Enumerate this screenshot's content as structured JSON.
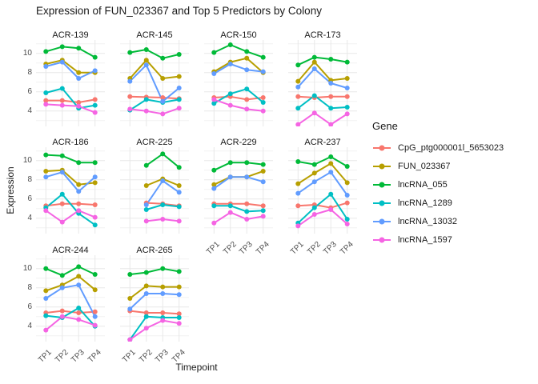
{
  "title": "Expression of FUN_023367 and Top 5 Predictors by Colony",
  "axis": {
    "x_title": "Timepoint",
    "y_title": "Expression",
    "x_tick_labels": [
      "TP1",
      "TP2",
      "TP3",
      "TP4"
    ],
    "y_tick_labels": [
      "4",
      "6",
      "8",
      "10"
    ]
  },
  "legend": {
    "title": "Gene",
    "entries": [
      {
        "label": "CpG_ptg000001l_5653023",
        "color": "#F8766D"
      },
      {
        "label": "FUN_023367",
        "color": "#B79F00"
      },
      {
        "label": "lncRNA_055",
        "color": "#00BA38"
      },
      {
        "label": "lncRNA_1289",
        "color": "#00BFC4"
      },
      {
        "label": "lncRNA_13032",
        "color": "#619CFF"
      },
      {
        "label": "lncRNA_1597",
        "color": "#F564E3"
      }
    ]
  },
  "chart_data": {
    "type": "line",
    "x": [
      "TP1",
      "TP2",
      "TP3",
      "TP4"
    ],
    "xlabel": "Timepoint",
    "ylabel": "Expression",
    "y_domain": [
      2.4,
      11.4
    ],
    "y_major_ticks": [
      4,
      6,
      8,
      10
    ],
    "y_minor_ticks": [
      3,
      5,
      7,
      9,
      11
    ],
    "grid": "on",
    "legend_position": "right",
    "series_names": [
      "CpG_ptg000001l_5653023",
      "FUN_023367",
      "lncRNA_055",
      "lncRNA_1289",
      "lncRNA_13032",
      "lncRNA_1597"
    ],
    "series_colors": [
      "#F8766D",
      "#B79F00",
      "#00BA38",
      "#00BFC4",
      "#619CFF",
      "#F564E3"
    ],
    "facets": [
      {
        "colony": "ACR-139",
        "series": [
          [
            5.1,
            5.1,
            4.9,
            5.2
          ],
          [
            8.9,
            9.3,
            8.0,
            8.0
          ],
          [
            10.2,
            10.7,
            10.55,
            9.6
          ],
          [
            5.9,
            6.35,
            4.3,
            4.6
          ],
          [
            8.65,
            9.1,
            7.4,
            8.2
          ],
          [
            4.7,
            4.6,
            4.5,
            3.85
          ]
        ]
      },
      {
        "colony": "ACR-145",
        "series": [
          [
            5.5,
            5.45,
            5.4,
            5.3
          ],
          [
            7.4,
            9.3,
            7.4,
            7.6
          ],
          [
            10.1,
            10.4,
            9.5,
            9.9
          ],
          [
            4.1,
            5.2,
            4.9,
            5.2
          ],
          [
            7.1,
            8.8,
            5.0,
            6.4
          ],
          [
            4.2,
            4.0,
            3.7,
            4.3
          ]
        ]
      },
      {
        "colony": "ACR-150",
        "series": [
          [
            5.4,
            5.5,
            5.2,
            5.4
          ],
          [
            8.1,
            9.1,
            9.5,
            8.0
          ],
          [
            10.1,
            10.9,
            10.2,
            9.6
          ],
          [
            4.8,
            5.8,
            6.3,
            4.9
          ],
          [
            7.9,
            8.9,
            8.3,
            8.1
          ],
          [
            5.2,
            4.6,
            4.2,
            4.0
          ]
        ]
      },
      {
        "colony": "ACR-173",
        "series": [
          [
            5.5,
            5.4,
            5.5,
            5.5
          ],
          [
            7.1,
            9.1,
            7.2,
            7.4
          ],
          [
            8.8,
            9.6,
            9.4,
            9.1
          ],
          [
            4.3,
            5.6,
            4.3,
            4.4
          ],
          [
            6.5,
            8.4,
            6.9,
            6.4
          ],
          [
            2.6,
            3.8,
            2.6,
            3.7
          ]
        ]
      },
      {
        "colony": "ACR-186",
        "series": [
          [
            5.3,
            5.5,
            5.5,
            5.4
          ],
          [
            8.9,
            9.0,
            7.5,
            7.7
          ],
          [
            10.6,
            10.5,
            9.8,
            9.8
          ],
          [
            5.1,
            6.5,
            4.5,
            3.3
          ],
          [
            8.3,
            8.8,
            6.8,
            8.3
          ],
          [
            4.8,
            3.6,
            4.8,
            4.1
          ]
        ]
      },
      {
        "colony": "ACR-225",
        "series": [
          [
            null,
            5.6,
            5.5,
            5.3
          ],
          [
            null,
            7.4,
            8.1,
            7.4
          ],
          [
            null,
            9.5,
            10.7,
            9.3
          ],
          [
            null,
            4.9,
            5.4,
            5.2
          ],
          [
            null,
            5.4,
            7.9,
            6.7
          ],
          [
            null,
            3.7,
            3.9,
            3.7
          ]
        ]
      },
      {
        "colony": "ACR-229",
        "series": [
          [
            5.5,
            5.5,
            5.5,
            5.3
          ],
          [
            7.5,
            8.3,
            8.3,
            8.9
          ],
          [
            9.0,
            9.8,
            9.8,
            9.6
          ],
          [
            5.3,
            5.3,
            4.7,
            4.8
          ],
          [
            7.1,
            8.3,
            8.3,
            7.8
          ],
          [
            3.5,
            4.6,
            3.9,
            4.2
          ]
        ]
      },
      {
        "colony": "ACR-237",
        "series": [
          [
            5.3,
            5.4,
            5.1,
            5.6
          ],
          [
            7.6,
            8.7,
            9.7,
            7.7
          ],
          [
            9.9,
            9.6,
            10.4,
            9.4
          ],
          [
            3.5,
            5.1,
            6.5,
            3.9
          ],
          [
            6.6,
            7.8,
            8.8,
            6.4
          ],
          [
            3.2,
            4.4,
            4.9,
            3.4
          ]
        ]
      },
      {
        "colony": "ACR-244",
        "series": [
          [
            5.4,
            5.6,
            5.4,
            5.5
          ],
          [
            7.7,
            8.3,
            9.2,
            7.8
          ],
          [
            10.0,
            9.3,
            10.2,
            9.4
          ],
          [
            5.1,
            4.9,
            5.9,
            4.0
          ],
          [
            6.9,
            8.0,
            8.3,
            5.0
          ],
          [
            3.6,
            5.0,
            4.7,
            4.1
          ]
        ]
      },
      {
        "colony": "ACR-265",
        "series": [
          [
            5.6,
            5.4,
            5.4,
            5.3
          ],
          [
            6.9,
            8.2,
            8.1,
            8.1
          ],
          [
            9.4,
            9.6,
            10.0,
            9.7
          ],
          [
            2.6,
            5.0,
            4.9,
            4.9
          ],
          [
            5.8,
            7.4,
            7.4,
            7.3
          ],
          [
            2.6,
            3.8,
            4.6,
            4.3
          ]
        ]
      }
    ]
  },
  "theme": {
    "grid_major_color": "#e8e8e8",
    "grid_minor_color": "#f2f2f2",
    "tick_text_color": "#4d4d4d",
    "text_color": "#1a1a1a"
  }
}
